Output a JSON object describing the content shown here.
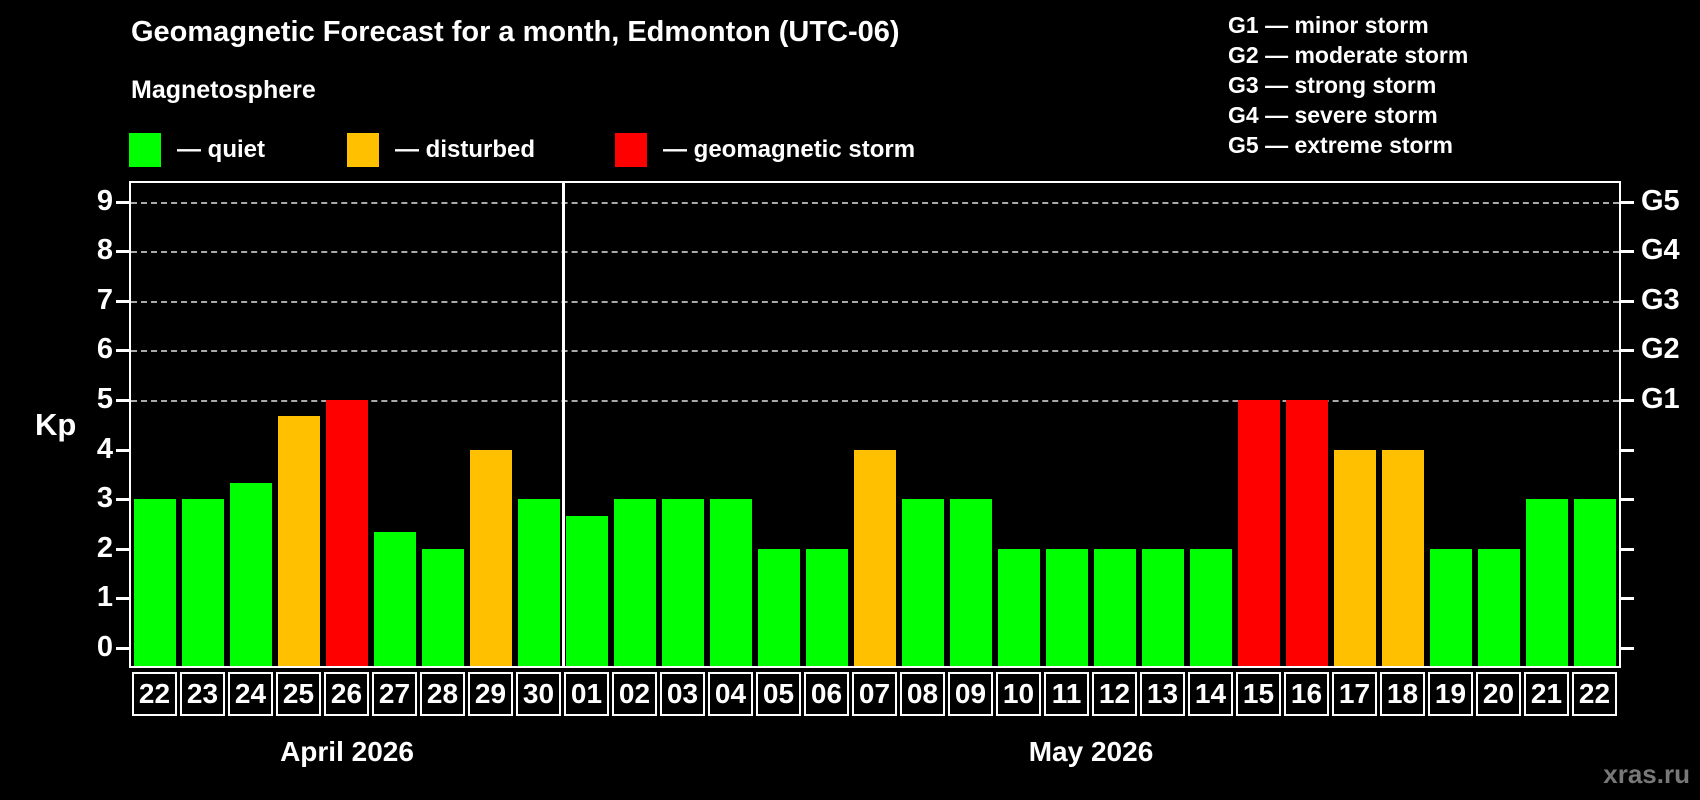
{
  "title": "Geomagnetic Forecast for a month, Edmonton (UTC-06)",
  "subtitle": "Magnetosphere",
  "legend": {
    "quiet_label": "— quiet",
    "disturbed_label": "— disturbed",
    "storm_label": "— geomagnetic storm"
  },
  "g_scale_legend": [
    "G1 — minor storm",
    "G2 — moderate storm",
    "G3 — strong storm",
    "G4 — severe storm",
    "G5 — extreme storm"
  ],
  "colors": {
    "quiet": "#00ff00",
    "disturbed": "#ffc000",
    "storm": "#ff0000",
    "grid": "#aaaaaa",
    "axis": "#ffffff",
    "watermark": "#787878"
  },
  "watermark": "xras.ru",
  "chart_data": {
    "type": "bar",
    "title": "Geomagnetic Forecast for a month, Edmonton (UTC-06)",
    "xlabel": "",
    "ylabel": "Kp",
    "ylim": [
      0,
      9.4
    ],
    "grid": "dashed horizontal at Kp 5-9",
    "gridlines": [
      5,
      6,
      7,
      8,
      9
    ],
    "y_ticks": [
      0,
      1,
      2,
      3,
      4,
      5,
      6,
      7,
      8,
      9
    ],
    "right_axis_labels": [
      {
        "kp": 5,
        "label": "G1"
      },
      {
        "kp": 6,
        "label": "G2"
      },
      {
        "kp": 7,
        "label": "G3"
      },
      {
        "kp": 8,
        "label": "G4"
      },
      {
        "kp": 9,
        "label": "G5"
      }
    ],
    "months": [
      {
        "label": "April 2026",
        "count": 9
      },
      {
        "label": "May 2026",
        "count": 22
      }
    ],
    "categories": [
      "22",
      "23",
      "24",
      "25",
      "26",
      "27",
      "28",
      "29",
      "30",
      "01",
      "02",
      "03",
      "04",
      "05",
      "06",
      "07",
      "08",
      "09",
      "10",
      "11",
      "12",
      "13",
      "14",
      "15",
      "16",
      "17",
      "18",
      "19",
      "20",
      "21",
      "22"
    ],
    "values": [
      3,
      3,
      3.33,
      4.67,
      5,
      2.33,
      2,
      4,
      3,
      2.67,
      3,
      3,
      3,
      2,
      2,
      4,
      3,
      3,
      2,
      2,
      2,
      2,
      2,
      5,
      5,
      4,
      4,
      2,
      2,
      3,
      3
    ],
    "statuses": [
      "quiet",
      "quiet",
      "quiet",
      "disturbed",
      "storm",
      "quiet",
      "quiet",
      "disturbed",
      "quiet",
      "quiet",
      "quiet",
      "quiet",
      "quiet",
      "quiet",
      "quiet",
      "disturbed",
      "quiet",
      "quiet",
      "quiet",
      "quiet",
      "quiet",
      "quiet",
      "quiet",
      "storm",
      "storm",
      "disturbed",
      "disturbed",
      "quiet",
      "quiet",
      "quiet",
      "quiet"
    ]
  }
}
